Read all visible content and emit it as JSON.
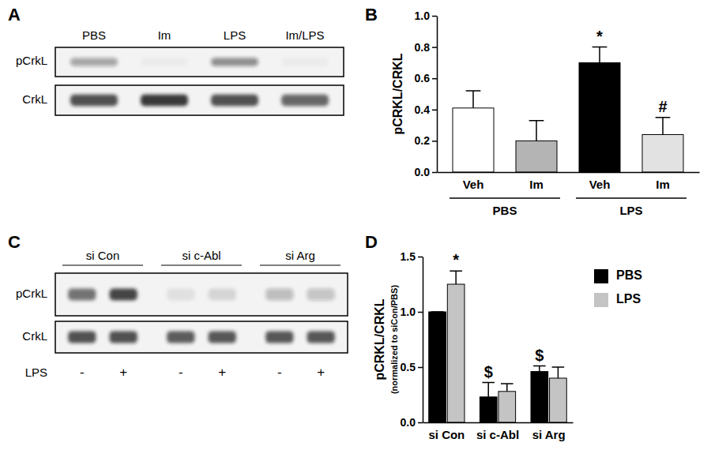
{
  "blots": [
    {
      "panel": "A",
      "lanes": [
        "PBS",
        "Im",
        "LPS",
        "Im/LPS"
      ],
      "rows": [
        {
          "label": "pCrkL",
          "intensity": [
            0.35,
            0.03,
            0.45,
            0.03
          ]
        },
        {
          "label": "CrkL",
          "intensity": [
            0.75,
            0.85,
            0.75,
            0.65
          ]
        }
      ]
    },
    {
      "panel": "C",
      "groups": [
        {
          "label": "si Con",
          "lanes": [
            "-",
            "+"
          ]
        },
        {
          "label": "si c-Abl",
          "lanes": [
            "-",
            "+"
          ]
        },
        {
          "label": "si Arg",
          "lanes": [
            "-",
            "+"
          ]
        }
      ],
      "lane_label": "LPS",
      "rows": [
        {
          "label": "pCrkL",
          "intensity": [
            0.6,
            0.8,
            0.08,
            0.12,
            0.25,
            0.22
          ]
        },
        {
          "label": "CrkL",
          "intensity": [
            0.75,
            0.75,
            0.7,
            0.72,
            0.72,
            0.72
          ]
        }
      ]
    }
  ],
  "chart_data": [
    {
      "panel": "B",
      "type": "bar",
      "categories": [
        "Veh",
        "Im",
        "Veh",
        "Im"
      ],
      "category_groups": [
        {
          "label": "PBS",
          "span": [
            0,
            1
          ]
        },
        {
          "label": "LPS",
          "span": [
            2,
            3
          ]
        }
      ],
      "values": [
        0.41,
        0.2,
        0.7,
        0.24
      ],
      "errors": [
        0.11,
        0.13,
        0.1,
        0.11
      ],
      "significance": [
        null,
        null,
        "*",
        "#"
      ],
      "colors": [
        "#ffffff",
        "#b4b4b4",
        "#000000",
        "#e2e2e2"
      ],
      "y_label": "pCRKL/CRKL",
      "ylim": [
        0,
        1
      ],
      "yticks": [
        {
          "value": 0,
          "label": "0.0"
        },
        0.2,
        0.4,
        0.6,
        0.8,
        {
          "value": 1,
          "label": "1.0"
        }
      ]
    },
    {
      "panel": "D",
      "type": "bar",
      "categories": [
        "si Con",
        "si c-Abl",
        "si Arg"
      ],
      "series": [
        {
          "name": "PBS",
          "color": "#000000",
          "values": [
            1.0,
            0.23,
            0.46
          ],
          "errors": [
            0,
            0.13,
            0.05
          ],
          "significance": [
            null,
            "$",
            "$"
          ]
        },
        {
          "name": "LPS",
          "color": "#c4c4c4",
          "values": [
            1.25,
            0.28,
            0.4
          ],
          "errors": [
            0.12,
            0.07,
            0.1
          ],
          "significance": [
            "*",
            null,
            null
          ]
        }
      ],
      "legend": "right",
      "y_label": "pCRKL/CRKL",
      "y_label_note": "(normalized to siCon/PBS)",
      "ylim": [
        0,
        1.5
      ],
      "yticks": [
        {
          "value": 0,
          "label": "0.0"
        },
        0.5,
        {
          "value": 1,
          "label": "1.0"
        },
        1.5
      ]
    }
  ]
}
